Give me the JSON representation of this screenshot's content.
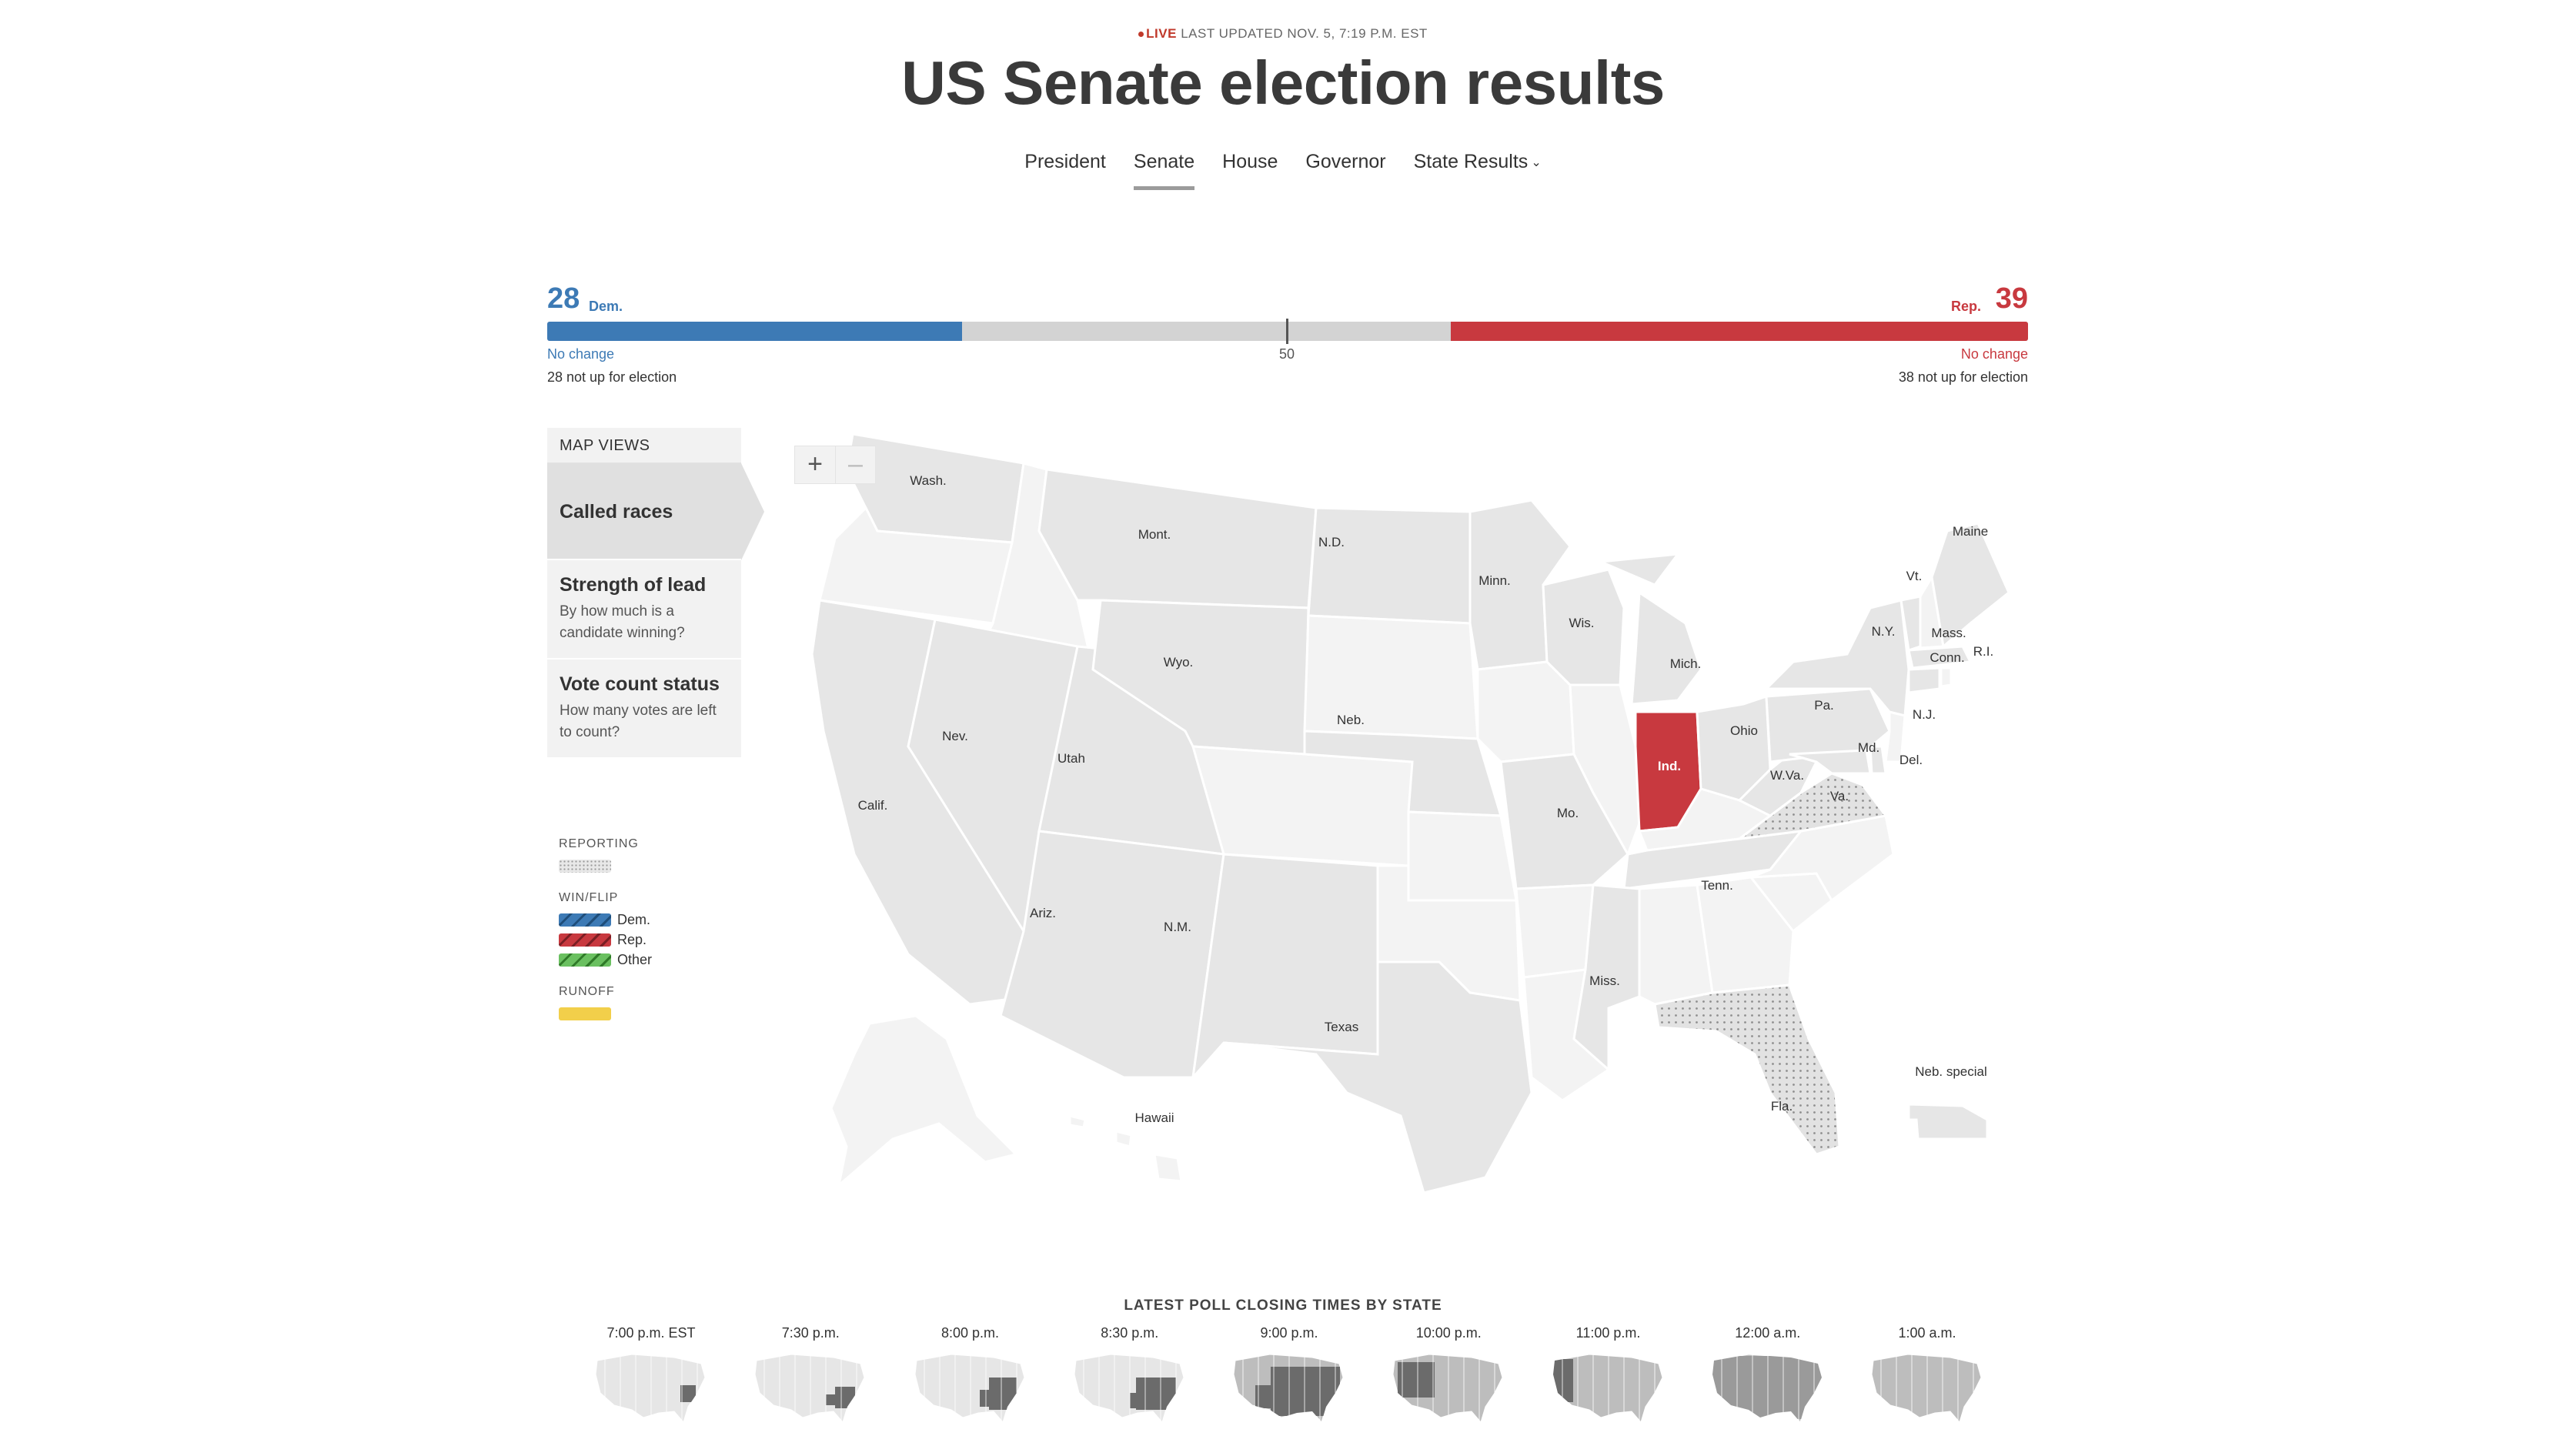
{
  "header": {
    "live_label": "LIVE",
    "updated": "LAST UPDATED NOV. 5, 7:19 P.M. EST",
    "title": "US Senate election results"
  },
  "nav": {
    "items": [
      "President",
      "Senate",
      "House",
      "Governor",
      "State Results"
    ],
    "active": "Senate"
  },
  "seat_bar": {
    "dem_seats": "28",
    "dem_label": "Dem.",
    "rep_seats": "39",
    "rep_label": "Rep.",
    "majority_mark": "50",
    "dem_change": "No change",
    "rep_change": "No change",
    "dem_not_up": "28 not up for election",
    "rep_not_up": "38 not up for election",
    "total_seats": 100,
    "dem_seats_value": 28,
    "rep_seats_value": 39,
    "colors": {
      "dem": "#3d7ab5",
      "rep": "#c8393f",
      "undecided": "#d3d3d3"
    }
  },
  "map_views": {
    "heading": "MAP VIEWS",
    "items": [
      {
        "title": "Called races",
        "desc": ""
      },
      {
        "title": "Strength of lead",
        "desc": "By how much is a candidate winning?"
      },
      {
        "title": "Vote count status",
        "desc": "How many votes are left to count?"
      }
    ],
    "active_index": 0
  },
  "legend": {
    "reporting": "REPORTING",
    "win_flip": "WIN/FLIP",
    "dem": "Dem.",
    "rep": "Rep.",
    "other": "Other",
    "runoff": "RUNOFF",
    "colors": {
      "dem": "#3d7ab5",
      "rep": "#c8393f",
      "other": "#6ac060",
      "runoff": "#f2cf4a"
    }
  },
  "zoom": {
    "in_icon": "plus-icon",
    "out_icon": "minus-icon"
  },
  "map": {
    "labels": {
      "wa": "Wash.",
      "mt": "Mont.",
      "nd": "N.D.",
      "mn": "Minn.",
      "wi": "Wis.",
      "mi": "Mich.",
      "me": "Maine",
      "vt": "Vt.",
      "ny": "N.Y.",
      "ma": "Mass.",
      "ct": "Conn.",
      "ri": "R.I.",
      "pa": "Pa.",
      "nj": "N.J.",
      "md": "Md.",
      "de": "Del.",
      "wv": "W.Va.",
      "va": "Va.",
      "oh": "Ohio",
      "in": "Ind.",
      "wy": "Wyo.",
      "ne": "Neb.",
      "nv": "Nev.",
      "ut": "Utah",
      "ca": "Calif.",
      "mo": "Mo.",
      "tn": "Tenn.",
      "az": "Ariz.",
      "nm": "N.M.",
      "tx": "Texas",
      "ms": "Miss.",
      "fl": "Fla.",
      "hi": "Hawaii",
      "ne_special": "Neb. special"
    },
    "called": [
      {
        "state": "Indiana",
        "winner": "Rep."
      }
    ],
    "reporting": [
      "Virginia",
      "Florida"
    ]
  },
  "poll_closing": {
    "title": "LATEST POLL CLOSING TIMES BY STATE",
    "times": [
      "7:00 p.m. EST",
      "7:30 p.m.",
      "8:00 p.m.",
      "8:30 p.m.",
      "9:00 p.m.",
      "10:00 p.m.",
      "11:00 p.m.",
      "12:00 a.m.",
      "1:00 a.m."
    ]
  }
}
